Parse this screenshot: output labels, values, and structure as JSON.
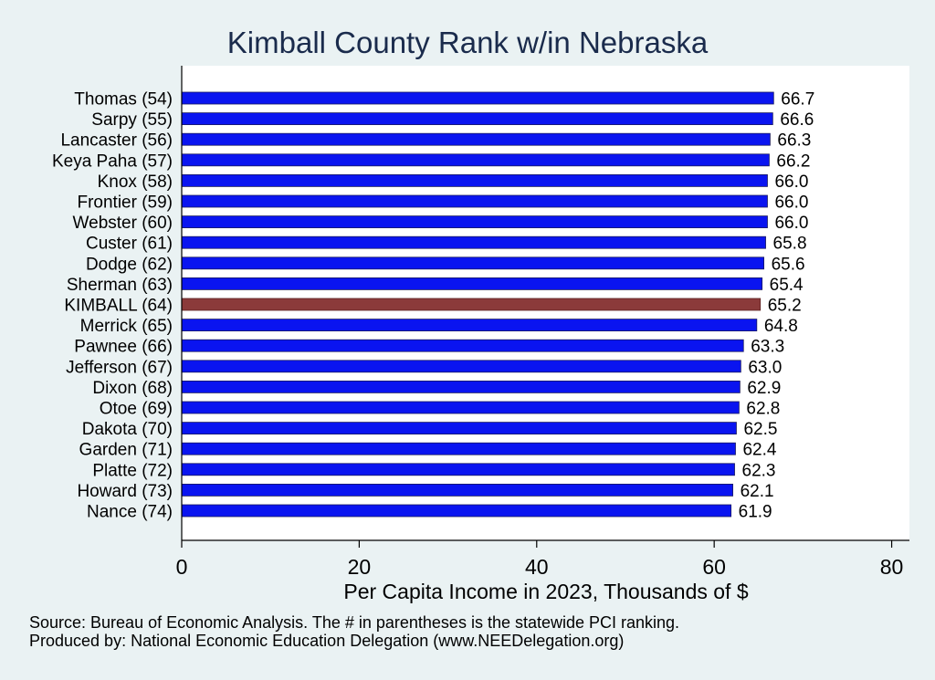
{
  "chart_data": {
    "type": "bar",
    "orientation": "horizontal",
    "title": "Kimball County Rank w/in Nebraska",
    "xlabel": "Per Capita Income in 2023, Thousands of $",
    "ylabel": "",
    "xlim": [
      0,
      82
    ],
    "xticks": [
      0,
      20,
      40,
      60,
      80
    ],
    "categories": [
      "Thomas (54)",
      "Sarpy (55)",
      "Lancaster (56)",
      "Keya Paha (57)",
      "Knox (58)",
      "Frontier (59)",
      "Webster (60)",
      "Custer (61)",
      "Dodge (62)",
      "Sherman (63)",
      "KIMBALL (64)",
      "Merrick (65)",
      "Pawnee (66)",
      "Jefferson (67)",
      "Dixon (68)",
      "Otoe (69)",
      "Dakota (70)",
      "Garden (71)",
      "Platte (72)",
      "Howard (73)",
      "Nance (74)"
    ],
    "values": [
      66.7,
      66.6,
      66.3,
      66.2,
      66.0,
      66.0,
      66.0,
      65.8,
      65.6,
      65.4,
      65.2,
      64.8,
      63.3,
      63.0,
      62.9,
      62.8,
      62.5,
      62.4,
      62.3,
      62.1,
      61.9
    ],
    "value_labels": [
      "66.7",
      "66.6",
      "66.3",
      "66.2",
      "66.0",
      "66.0",
      "66.0",
      "65.8",
      "65.6",
      "65.4",
      "65.2",
      "64.8",
      "63.3",
      "63.0",
      "62.9",
      "62.8",
      "62.5",
      "62.4",
      "62.3",
      "62.1",
      "61.9"
    ],
    "highlight_index": 10,
    "colors": {
      "bar": "#0a14f0",
      "highlight": "#8b3a3a",
      "plot_bg": "#ffffff",
      "page_bg": "#eaf2f3",
      "title": "#1a2b4c"
    },
    "grid": false
  },
  "footer": {
    "source": "Source: Bureau of Economic Analysis. The # in parentheses is the statewide PCI ranking.",
    "produced_by": "Produced by: National Economic Education Delegation (www.NEEDelegation.org)"
  }
}
